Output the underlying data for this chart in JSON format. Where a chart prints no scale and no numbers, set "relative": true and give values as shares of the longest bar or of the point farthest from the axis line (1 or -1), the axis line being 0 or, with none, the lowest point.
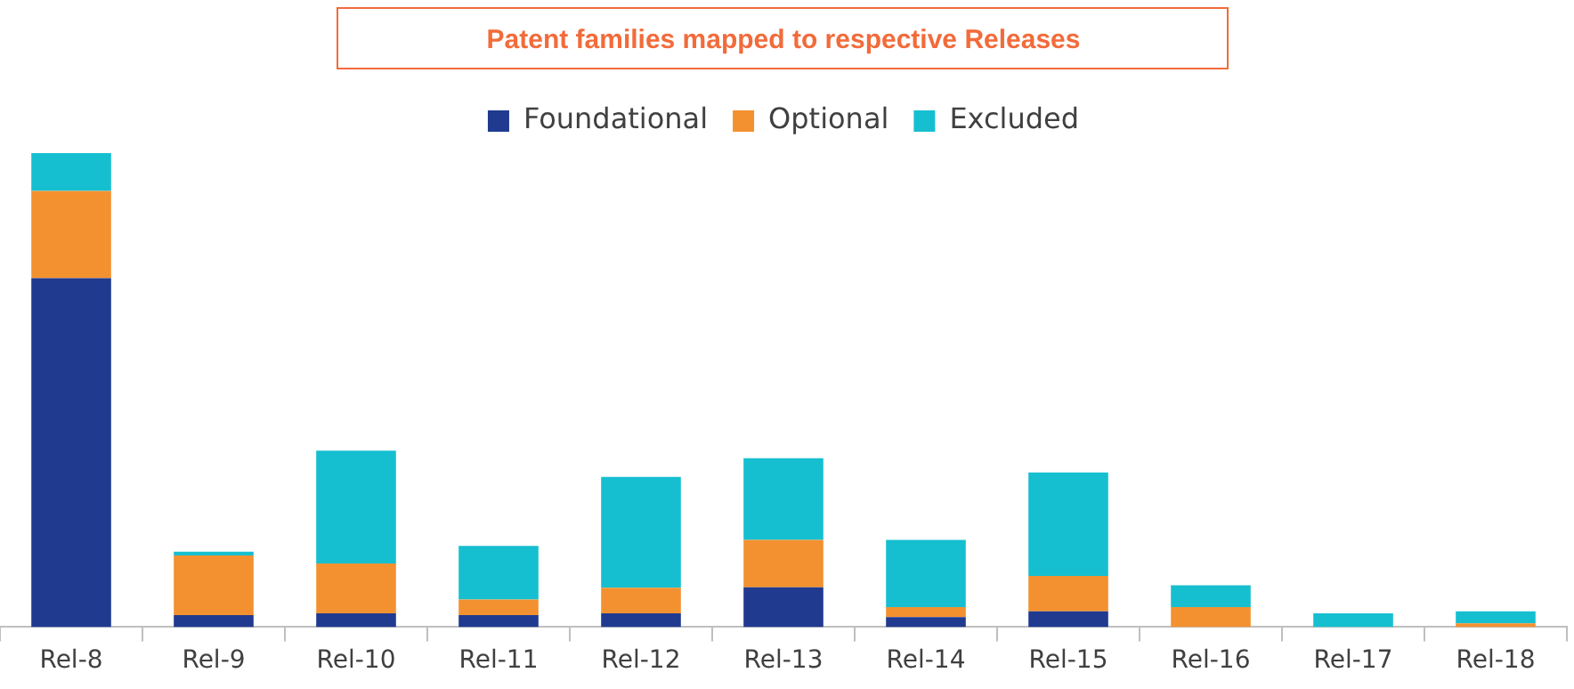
{
  "chart_data": {
    "type": "bar",
    "title": "Patent families mapped to respective Releases",
    "categories": [
      "Rel-8",
      "Rel-9",
      "Rel-10",
      "Rel-11",
      "Rel-12",
      "Rel-13",
      "Rel-14",
      "Rel-15",
      "Rel-16",
      "Rel-17",
      "Rel-18"
    ],
    "series": [
      {
        "name": "Foundational",
        "color": "#1f3a8f",
        "values": [
          0.736,
          0.025,
          0.029,
          0.025,
          0.029,
          0.084,
          0.021,
          0.033,
          0,
          0,
          0
        ]
      },
      {
        "name": "Optional",
        "color": "#f39130",
        "values": [
          0.184,
          0.126,
          0.105,
          0.033,
          0.054,
          0.1,
          0.021,
          0.075,
          0.042,
          0,
          0.008
        ]
      },
      {
        "name": "Excluded",
        "color": "#16bfd0",
        "values": [
          0.08,
          0.008,
          0.238,
          0.113,
          0.234,
          0.172,
          0.142,
          0.218,
          0.046,
          0.029,
          0.025
        ]
      }
    ],
    "stacked": true,
    "relative": true,
    "legend": "top",
    "grid": false
  }
}
